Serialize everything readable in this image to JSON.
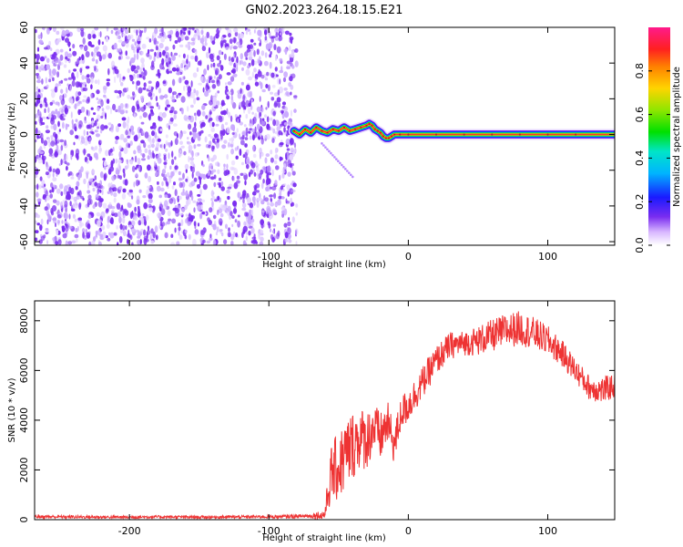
{
  "title": "GN02.2023.264.18.15.E21",
  "colors": {
    "snr_line": "#ee3333",
    "track_core": "#cc1133",
    "noise_dot": "#7a2df0",
    "noise_dot_light": "#c9a8ff"
  },
  "chart_data": [
    {
      "type": "heatmap",
      "xlabel": "Height of straight line (km)",
      "ylabel": "Frequency (Hz)",
      "xlim": [
        -268,
        148
      ],
      "ylim": [
        -62,
        60
      ],
      "xticks": [
        -200,
        -100,
        0,
        100
      ],
      "yticks": [
        60,
        40,
        20,
        0,
        -20,
        -40,
        -60
      ],
      "noise_region": {
        "x_from": -268,
        "x_to": -80,
        "description_free": true
      },
      "track": {
        "x": [
          -82,
          -78,
          -74,
          -70,
          -66,
          -62,
          -58,
          -54,
          -50,
          -46,
          -42,
          -38,
          -34,
          -30,
          -28,
          -26,
          -24,
          -22,
          -20,
          -18,
          -16,
          -14,
          -12,
          -10,
          -6,
          0,
          20,
          40,
          60,
          80,
          100,
          120,
          148
        ],
        "y": [
          2,
          0,
          3,
          1,
          4,
          2,
          1,
          3,
          2,
          4,
          2,
          3,
          4,
          5,
          6,
          5,
          3,
          2,
          1,
          -1,
          -2,
          -2,
          -1,
          0,
          0,
          0,
          0,
          0,
          0,
          0,
          0,
          0,
          0
        ]
      },
      "colorbar": {
        "label": "Normalized spectral amplitude",
        "range": [
          0,
          1
        ],
        "ticks": [
          0.0,
          0.2,
          0.4,
          0.6,
          0.8
        ]
      },
      "grid": false
    },
    {
      "type": "line",
      "xlabel": "Height of straight line (km)",
      "ylabel": "SNR (10 * v/v)",
      "xlim": [
        -268,
        148
      ],
      "ylim": [
        0,
        8800
      ],
      "xticks": [
        -200,
        -100,
        0,
        100
      ],
      "yticks": [
        0,
        2000,
        4000,
        6000,
        8000
      ],
      "series": [
        {
          "x": [
            -268,
            -240,
            -210,
            -180,
            -150,
            -120,
            -90,
            -70,
            -60,
            -55,
            -50,
            -45,
            -40,
            -35,
            -30,
            -25,
            -20,
            -15,
            -10,
            -5,
            0,
            10,
            20,
            30,
            40,
            50,
            60,
            70,
            80,
            90,
            100,
            110,
            120,
            130,
            140,
            148
          ],
          "values": [
            120,
            110,
            100,
            110,
            100,
            110,
            120,
            150,
            200,
            1900,
            2100,
            2600,
            3000,
            3300,
            3200,
            3700,
            3300,
            3900,
            3000,
            4300,
            4600,
            5500,
            6400,
            7000,
            7100,
            7200,
            7400,
            7600,
            7700,
            7500,
            7200,
            6700,
            6000,
            5300,
            5200,
            5400
          ],
          "noise_amplitude": [
            60,
            60,
            60,
            60,
            60,
            60,
            70,
            80,
            250,
            1200,
            1400,
            1500,
            1400,
            1300,
            1200,
            1100,
            1000,
            900,
            800,
            700,
            700,
            650,
            600,
            550,
            500,
            600,
            650,
            700,
            700,
            650,
            600,
            550,
            500,
            500,
            550,
            500
          ]
        }
      ],
      "grid": false
    }
  ]
}
